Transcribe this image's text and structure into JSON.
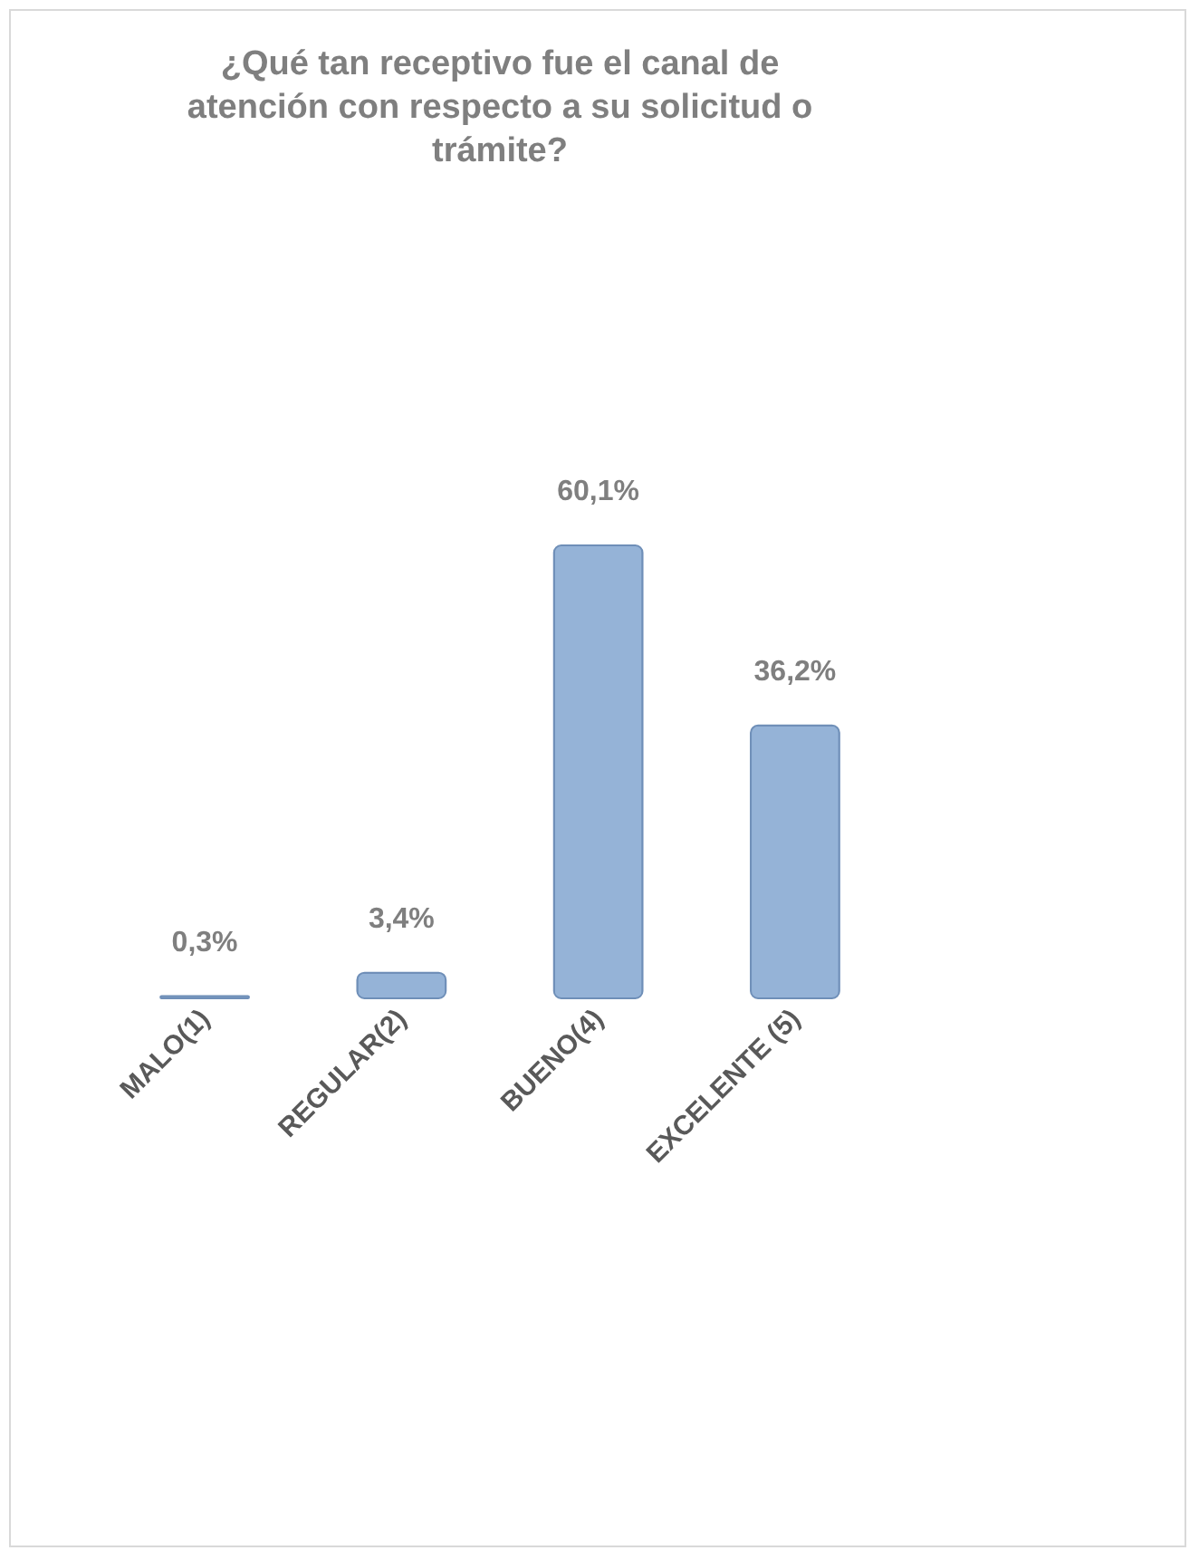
{
  "chart_data": {
    "type": "bar",
    "title": "¿Qué tan receptivo fue el canal de atención con respecto a su solicitud o trámite?",
    "categories": [
      "MALO(1)",
      "REGULAR(2)",
      "BUENO(4)",
      "EXCELENTE (5)"
    ],
    "values": [
      0.3,
      3.4,
      60.1,
      36.2
    ],
    "value_labels": [
      "0,3%",
      "3,4%",
      "60,1%",
      "36,2%"
    ],
    "color": "#95b3d7"
  }
}
